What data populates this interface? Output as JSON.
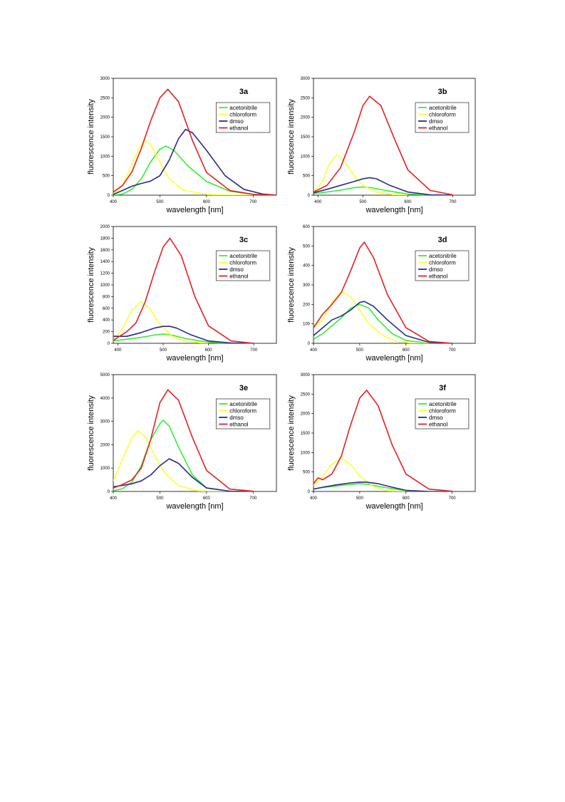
{
  "colors": {
    "acetonitrile": "#33ee33",
    "chloroform": "#ffff33",
    "dmso": "#2a2a8a",
    "ethanol": "#e82020"
  },
  "chart_data": [
    {
      "type": "line",
      "title": "3a",
      "xlabel": "wavelength [nm]",
      "ylabel": "fluorescence intensity",
      "xlim": [
        400,
        750
      ],
      "ylim": [
        0,
        3000
      ],
      "xticks": [
        400,
        500,
        600,
        700
      ],
      "yticks": [
        0,
        500,
        1000,
        1500,
        2000,
        2500,
        3000
      ],
      "legend": "top-right",
      "series": [
        {
          "name": "acetonitrile",
          "x": [
            400,
            420,
            440,
            460,
            480,
            500,
            513,
            530,
            560,
            600,
            650,
            700,
            750
          ],
          "y": [
            0,
            30,
            150,
            420,
            850,
            1180,
            1260,
            1150,
            750,
            350,
            100,
            20,
            0
          ]
        },
        {
          "name": "chloroform",
          "x": [
            400,
            420,
            440,
            455,
            467,
            480,
            500,
            520,
            550,
            600,
            650,
            700
          ],
          "y": [
            30,
            250,
            800,
            1200,
            1400,
            1300,
            850,
            420,
            130,
            20,
            0,
            0
          ]
        },
        {
          "name": "dmso",
          "x": [
            400,
            420,
            440,
            460,
            480,
            500,
            520,
            540,
            555,
            570,
            600,
            640,
            680,
            720,
            750
          ],
          "y": [
            20,
            120,
            230,
            300,
            360,
            500,
            900,
            1450,
            1690,
            1600,
            1150,
            500,
            150,
            30,
            0
          ]
        },
        {
          "name": "ethanol",
          "x": [
            400,
            420,
            440,
            460,
            480,
            500,
            517,
            540,
            570,
            600,
            650,
            700,
            750
          ],
          "y": [
            80,
            250,
            600,
            1200,
            1900,
            2500,
            2720,
            2400,
            1400,
            580,
            120,
            20,
            0
          ]
        }
      ]
    },
    {
      "type": "line",
      "title": "3b",
      "xlabel": "wavelength [nm]",
      "ylabel": "fluorescence intensity",
      "xlim": [
        390,
        750
      ],
      "ylim": [
        0,
        3000
      ],
      "xticks": [
        400,
        500,
        600,
        700
      ],
      "yticks": [
        0,
        500,
        1000,
        1500,
        2000,
        2500,
        3000
      ],
      "legend": "top-right",
      "series": [
        {
          "name": "acetonitrile",
          "x": [
            390,
            420,
            450,
            480,
            500,
            520,
            550,
            600,
            650,
            700
          ],
          "y": [
            40,
            80,
            130,
            190,
            210,
            190,
            120,
            30,
            5,
            0
          ]
        },
        {
          "name": "chloroform",
          "x": [
            390,
            410,
            425,
            443,
            460,
            480,
            500,
            530,
            570,
            600
          ],
          "y": [
            60,
            350,
            800,
            1050,
            850,
            500,
            250,
            80,
            10,
            0
          ]
        },
        {
          "name": "dmso",
          "x": [
            390,
            420,
            450,
            480,
            500,
            515,
            530,
            560,
            600,
            650,
            700
          ],
          "y": [
            60,
            150,
            250,
            350,
            420,
            450,
            420,
            250,
            80,
            10,
            0
          ]
        },
        {
          "name": "ethanol",
          "x": [
            390,
            420,
            450,
            480,
            500,
            515,
            540,
            570,
            600,
            650,
            700
          ],
          "y": [
            80,
            250,
            700,
            1600,
            2300,
            2540,
            2300,
            1450,
            650,
            120,
            10
          ]
        }
      ]
    },
    {
      "type": "line",
      "title": "3c",
      "xlabel": "wavelength [nm]",
      "ylabel": "fluorescence intensity",
      "xlim": [
        390,
        750
      ],
      "ylim": [
        0,
        2000
      ],
      "xticks": [
        400,
        500,
        600,
        700
      ],
      "yticks": [
        0,
        200,
        400,
        600,
        800,
        1000,
        1200,
        1400,
        1600,
        1800,
        2000
      ],
      "legend": "top-right",
      "series": [
        {
          "name": "acetonitrile",
          "x": [
            390,
            420,
            450,
            480,
            500,
            520,
            550,
            600,
            650
          ],
          "y": [
            40,
            70,
            100,
            140,
            160,
            140,
            80,
            20,
            0
          ]
        },
        {
          "name": "chloroform",
          "x": [
            390,
            410,
            430,
            450,
            470,
            490,
            520,
            550,
            600
          ],
          "y": [
            50,
            250,
            550,
            710,
            600,
            350,
            120,
            30,
            0
          ]
        },
        {
          "name": "dmso",
          "x": [
            390,
            420,
            450,
            480,
            500,
            515,
            530,
            560,
            600,
            650,
            700
          ],
          "y": [
            120,
            120,
            180,
            260,
            290,
            290,
            260,
            150,
            40,
            5,
            0
          ]
        },
        {
          "name": "ethanol",
          "x": [
            390,
            420,
            440,
            460,
            480,
            500,
            515,
            540,
            570,
            600,
            650,
            700
          ],
          "y": [
            50,
            200,
            350,
            700,
            1200,
            1650,
            1800,
            1500,
            800,
            300,
            40,
            0
          ]
        }
      ]
    },
    {
      "type": "line",
      "title": "3d",
      "xlabel": "wavelength [nm]",
      "ylabel": "fluorescence intensity",
      "xlim": [
        400,
        750
      ],
      "ylim": [
        0,
        600
      ],
      "xticks": [
        400,
        500,
        600,
        700
      ],
      "yticks": [
        0,
        100,
        200,
        300,
        400,
        500,
        600
      ],
      "legend": "top-right",
      "series": [
        {
          "name": "acetonitrile",
          "x": [
            400,
            420,
            440,
            460,
            480,
            500,
            520,
            540,
            570,
            600,
            650,
            700
          ],
          "y": [
            20,
            50,
            90,
            130,
            180,
            200,
            180,
            120,
            50,
            15,
            0,
            0
          ]
        },
        {
          "name": "chloroform",
          "x": [
            400,
            420,
            440,
            460,
            480,
            500,
            520,
            550,
            580,
            620,
            650
          ],
          "y": [
            80,
            120,
            210,
            265,
            240,
            170,
            100,
            40,
            10,
            0,
            0
          ]
        },
        {
          "name": "dmso",
          "x": [
            400,
            420,
            440,
            460,
            480,
            500,
            510,
            530,
            560,
            600,
            650,
            700
          ],
          "y": [
            40,
            80,
            120,
            140,
            170,
            210,
            215,
            190,
            120,
            40,
            5,
            0
          ]
        },
        {
          "name": "ethanol",
          "x": [
            400,
            420,
            440,
            460,
            480,
            500,
            510,
            530,
            560,
            600,
            650,
            700
          ],
          "y": [
            80,
            150,
            200,
            260,
            370,
            490,
            520,
            440,
            250,
            80,
            10,
            0
          ]
        }
      ]
    },
    {
      "type": "line",
      "title": "3e",
      "xlabel": "wavelength [nm]",
      "ylabel": "fluorescence intensity",
      "xlim": [
        400,
        750
      ],
      "ylim": [
        0,
        5000
      ],
      "xticks": [
        400,
        500,
        600,
        700
      ],
      "yticks": [
        0,
        1000,
        2000,
        3000,
        4000,
        5000
      ],
      "legend": "top-right",
      "series": [
        {
          "name": "acetonitrile",
          "x": [
            400,
            420,
            440,
            460,
            480,
            500,
            507,
            520,
            540,
            570,
            600,
            650,
            700
          ],
          "y": [
            30,
            120,
            400,
            1100,
            2200,
            2900,
            3050,
            2800,
            1900,
            700,
            150,
            10,
            0
          ]
        },
        {
          "name": "chloroform",
          "x": [
            400,
            420,
            440,
            453,
            470,
            490,
            510,
            540,
            580,
            620,
            650
          ],
          "y": [
            450,
            1400,
            2300,
            2600,
            2300,
            1500,
            800,
            250,
            30,
            0,
            0
          ]
        },
        {
          "name": "dmso",
          "x": [
            400,
            420,
            440,
            460,
            480,
            500,
            520,
            540,
            570,
            600,
            650,
            700
          ],
          "y": [
            200,
            260,
            330,
            450,
            700,
            1100,
            1400,
            1200,
            600,
            150,
            10,
            0
          ]
        },
        {
          "name": "ethanol",
          "x": [
            400,
            420,
            440,
            460,
            480,
            500,
            517,
            540,
            570,
            600,
            650,
            700
          ],
          "y": [
            150,
            300,
            500,
            1000,
            2200,
            3800,
            4350,
            3900,
            2300,
            900,
            100,
            10
          ]
        }
      ]
    },
    {
      "type": "line",
      "title": "3f",
      "xlabel": "wavelength [nm]",
      "ylabel": "fluorescence intensity",
      "xlim": [
        400,
        750
      ],
      "ylim": [
        0,
        3000
      ],
      "xticks": [
        400,
        500,
        600,
        700
      ],
      "yticks": [
        0,
        500,
        1000,
        1500,
        2000,
        2500,
        3000
      ],
      "legend": "top-right",
      "series": [
        {
          "name": "acetonitrile",
          "x": [
            400,
            420,
            450,
            480,
            500,
            520,
            550,
            600,
            650
          ],
          "y": [
            60,
            100,
            140,
            180,
            200,
            180,
            110,
            20,
            0
          ]
        },
        {
          "name": "chloroform",
          "x": [
            400,
            420,
            440,
            460,
            480,
            500,
            530,
            560,
            600
          ],
          "y": [
            150,
            400,
            700,
            850,
            700,
            400,
            120,
            20,
            0
          ]
        },
        {
          "name": "dmso",
          "x": [
            400,
            420,
            450,
            480,
            500,
            515,
            540,
            570,
            600,
            650,
            700
          ],
          "y": [
            60,
            110,
            170,
            220,
            240,
            240,
            200,
            110,
            30,
            0,
            0
          ]
        },
        {
          "name": "ethanol",
          "x": [
            400,
            410,
            420,
            440,
            460,
            480,
            500,
            515,
            540,
            570,
            600,
            650,
            700
          ],
          "y": [
            200,
            350,
            300,
            450,
            900,
            1700,
            2400,
            2600,
            2200,
            1200,
            450,
            60,
            5
          ]
        }
      ]
    }
  ]
}
